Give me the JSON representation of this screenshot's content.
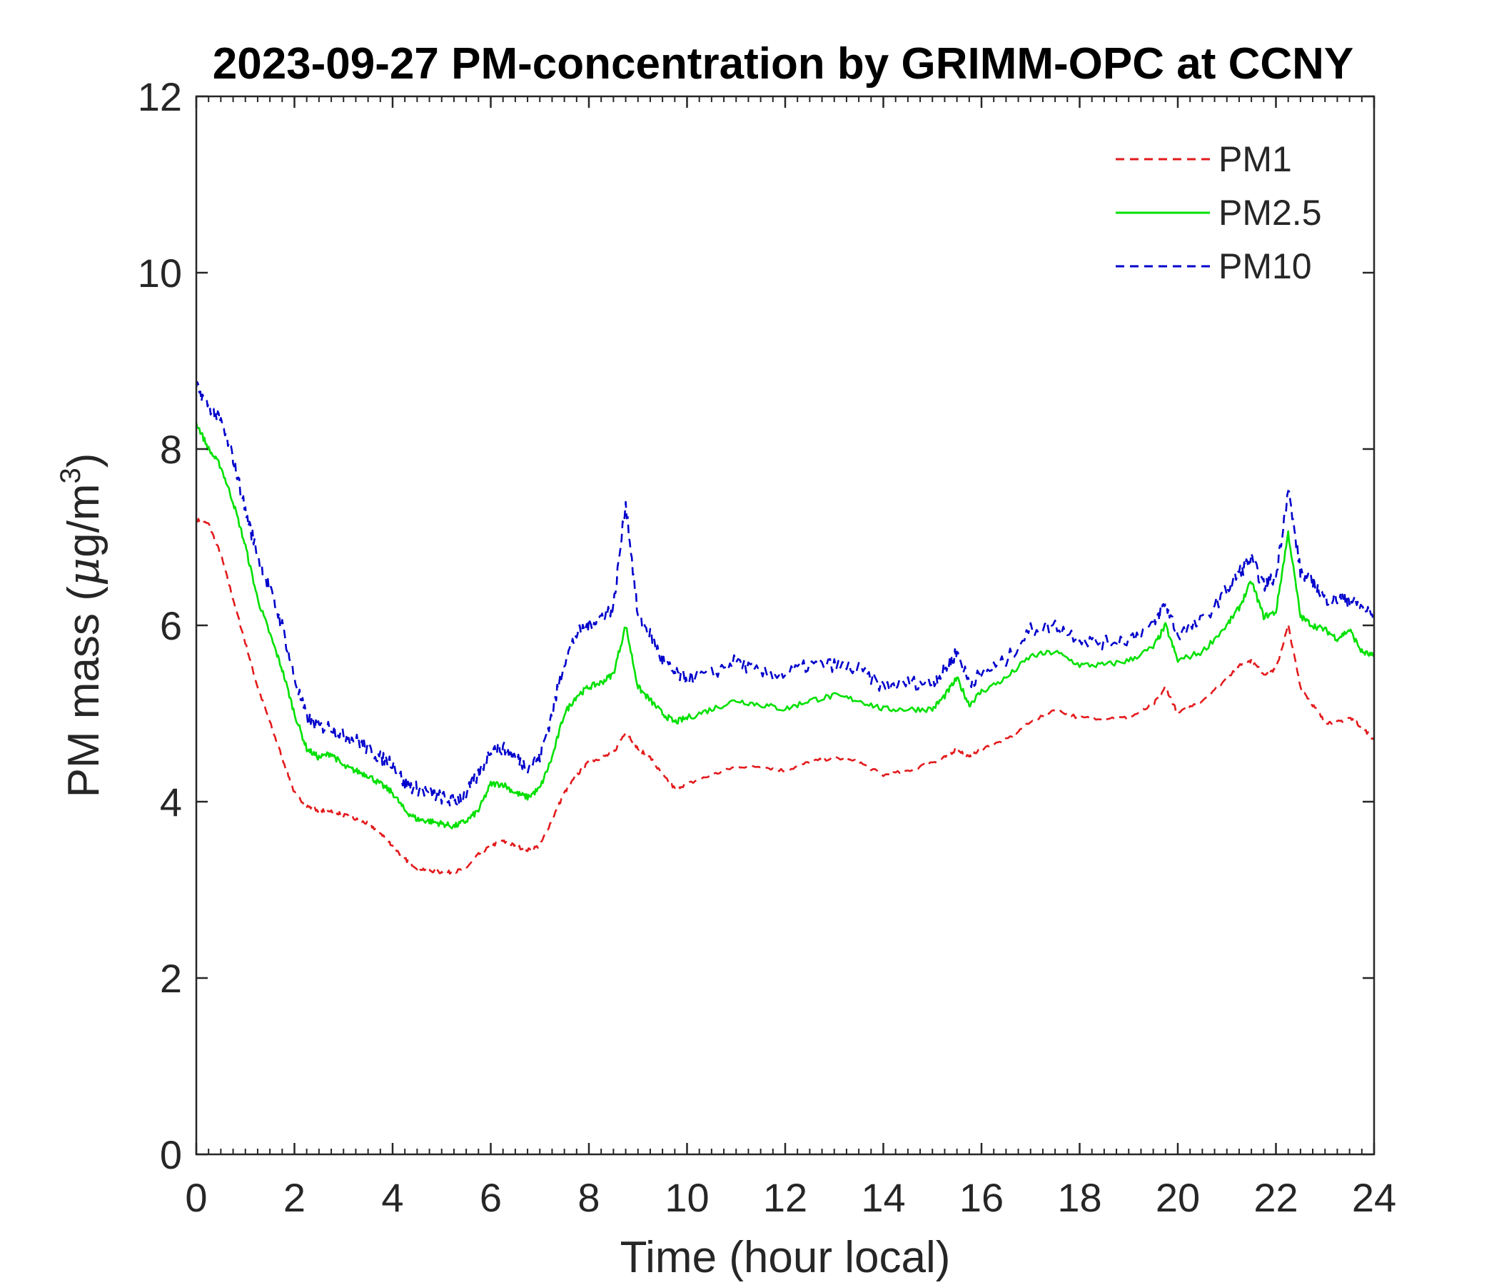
{
  "chart_data": {
    "type": "line",
    "title": "2023-09-27 PM-concentration by GRIMM-OPC at CCNY",
    "xlabel": "Time (hour local)",
    "ylabel_prefix": "PM mass (",
    "ylabel_mu": "μ",
    "ylabel_unit": "g/m",
    "ylabel_sup": "3",
    "ylabel_suffix": ")",
    "xlim": [
      0,
      24
    ],
    "ylim": [
      0,
      12
    ],
    "x_ticks": [
      "0",
      "2",
      "4",
      "6",
      "8",
      "10",
      "12",
      "14",
      "16",
      "18",
      "20",
      "22",
      "24"
    ],
    "y_ticks": [
      "0",
      "2",
      "4",
      "6",
      "8",
      "10",
      "12"
    ],
    "legend_position": "top-right",
    "x": [
      0,
      0.25,
      0.5,
      0.75,
      1,
      1.25,
      1.5,
      1.75,
      2,
      2.25,
      2.5,
      2.75,
      3,
      3.25,
      3.5,
      3.75,
      4,
      4.25,
      4.5,
      4.75,
      5,
      5.25,
      5.5,
      5.75,
      6,
      6.25,
      6.5,
      6.75,
      7,
      7.25,
      7.5,
      7.75,
      8,
      8.25,
      8.5,
      8.75,
      9,
      9.25,
      9.5,
      9.75,
      10,
      10.5,
      11,
      11.5,
      12,
      12.5,
      13,
      13.5,
      14,
      14.5,
      15,
      15.25,
      15.5,
      15.75,
      16,
      16.5,
      17,
      17.5,
      18,
      18.5,
      19,
      19.5,
      19.75,
      20,
      20.5,
      21,
      21.25,
      21.5,
      21.75,
      22,
      22.25,
      22.5,
      22.75,
      23,
      23.25,
      23.5,
      23.75,
      24
    ],
    "series": [
      {
        "name": "PM1",
        "color": "#e31a1c",
        "style": "dashed",
        "values": [
          7.2,
          7.15,
          6.8,
          6.3,
          5.8,
          5.3,
          4.9,
          4.5,
          4.1,
          3.95,
          3.9,
          3.9,
          3.85,
          3.8,
          3.75,
          3.65,
          3.5,
          3.35,
          3.25,
          3.22,
          3.2,
          3.2,
          3.25,
          3.4,
          3.5,
          3.55,
          3.5,
          3.45,
          3.5,
          3.8,
          4.1,
          4.3,
          4.45,
          4.5,
          4.55,
          4.8,
          4.6,
          4.5,
          4.3,
          4.15,
          4.2,
          4.3,
          4.4,
          4.4,
          4.35,
          4.45,
          4.5,
          4.45,
          4.3,
          4.35,
          4.45,
          4.5,
          4.6,
          4.5,
          4.6,
          4.7,
          4.9,
          5.05,
          4.95,
          4.95,
          4.95,
          5.1,
          5.3,
          5.0,
          5.15,
          5.4,
          5.55,
          5.6,
          5.45,
          5.5,
          6.0,
          5.3,
          5.1,
          4.9,
          4.9,
          4.95,
          4.85,
          4.7
        ]
      },
      {
        "name": "PM2.5",
        "color": "#00e000",
        "style": "solid",
        "values": [
          8.3,
          8.0,
          7.8,
          7.4,
          6.9,
          6.3,
          5.9,
          5.5,
          5.0,
          4.6,
          4.5,
          4.55,
          4.4,
          4.35,
          4.3,
          4.2,
          4.1,
          3.9,
          3.8,
          3.78,
          3.75,
          3.72,
          3.78,
          3.9,
          4.2,
          4.2,
          4.1,
          4.05,
          4.15,
          4.5,
          5.0,
          5.2,
          5.3,
          5.35,
          5.45,
          6.0,
          5.3,
          5.15,
          5.0,
          4.9,
          4.95,
          5.05,
          5.15,
          5.1,
          5.05,
          5.15,
          5.2,
          5.15,
          5.05,
          5.05,
          5.05,
          5.2,
          5.4,
          5.1,
          5.25,
          5.4,
          5.65,
          5.7,
          5.55,
          5.55,
          5.6,
          5.75,
          6.0,
          5.6,
          5.7,
          6.0,
          6.2,
          6.5,
          6.1,
          6.15,
          7.05,
          6.1,
          6.0,
          5.95,
          5.85,
          5.95,
          5.7,
          5.65
        ]
      },
      {
        "name": "PM10",
        "color": "#0000cc",
        "style": "dashed",
        "values": [
          8.7,
          8.5,
          8.3,
          7.9,
          7.3,
          6.8,
          6.4,
          6.0,
          5.4,
          4.95,
          4.85,
          4.85,
          4.75,
          4.7,
          4.6,
          4.5,
          4.45,
          4.2,
          4.15,
          4.1,
          4.05,
          4.0,
          4.1,
          4.3,
          4.6,
          4.6,
          4.5,
          4.4,
          4.5,
          5.0,
          5.6,
          5.9,
          6.0,
          6.1,
          6.2,
          7.4,
          6.1,
          5.9,
          5.6,
          5.45,
          5.4,
          5.45,
          5.6,
          5.45,
          5.45,
          5.55,
          5.55,
          5.5,
          5.3,
          5.35,
          5.35,
          5.5,
          5.7,
          5.35,
          5.45,
          5.6,
          5.95,
          6.0,
          5.85,
          5.8,
          5.85,
          6.0,
          6.25,
          5.9,
          6.05,
          6.4,
          6.6,
          6.75,
          6.45,
          6.55,
          7.55,
          6.6,
          6.5,
          6.3,
          6.3,
          6.3,
          6.2,
          6.1
        ]
      }
    ]
  }
}
